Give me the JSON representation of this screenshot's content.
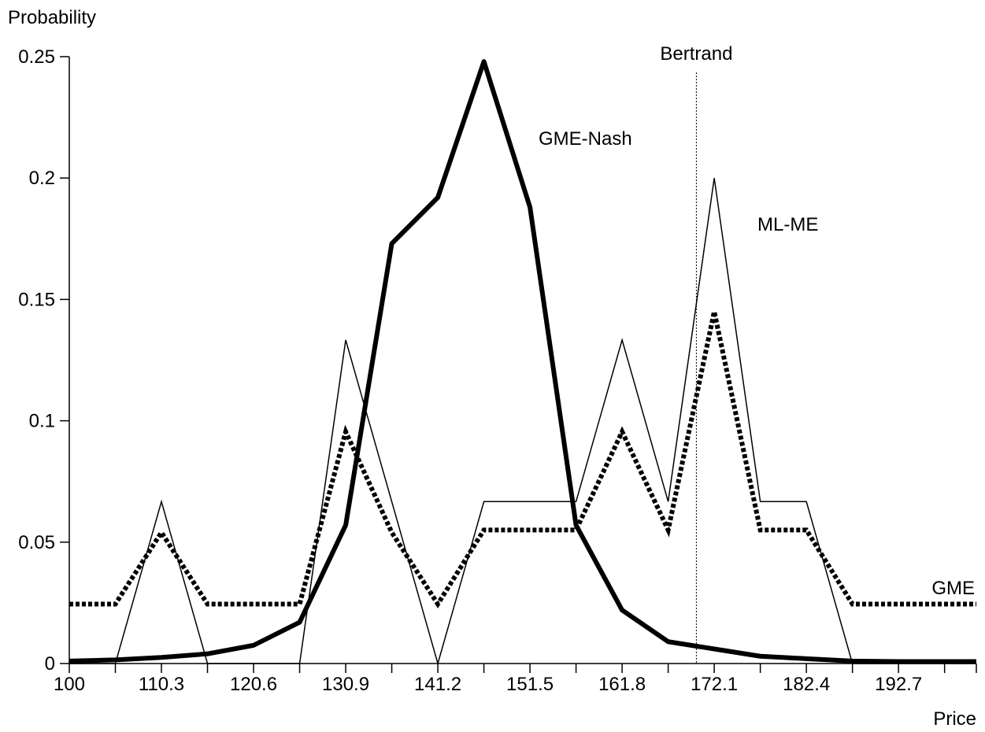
{
  "chart_data": {
    "type": "line",
    "xlabel": "Price",
    "ylabel": "Probability",
    "xlim": [
      100,
      201.4
    ],
    "ylim": [
      0,
      0.25
    ],
    "x": [
      100,
      105.15,
      110.3,
      115.45,
      120.6,
      125.75,
      130.9,
      136.05,
      141.2,
      146.35,
      151.5,
      156.65,
      161.8,
      166.95,
      172.1,
      177.25,
      182.4,
      187.55,
      192.7,
      197.85,
      201.4
    ],
    "x_tick_labels": [
      "100",
      "110.3",
      "120.6",
      "130.9",
      "141.2",
      "151.5",
      "161.8",
      "172.1",
      "182.4",
      "192.7"
    ],
    "x_tick_values": [
      100,
      110.3,
      120.6,
      130.9,
      141.2,
      151.5,
      161.8,
      172.1,
      182.4,
      192.7
    ],
    "y_ticks": [
      0,
      0.05,
      0.1,
      0.15,
      0.2,
      0.25
    ],
    "y_tick_labels": [
      "0",
      "0.05",
      "0.1",
      "0.15",
      "0.2",
      "0.25"
    ],
    "series": [
      {
        "name": "GME-Nash",
        "style": "thick",
        "values": [
          0.001,
          0.0015,
          0.0025,
          0.004,
          0.0075,
          0.017,
          0.057,
          0.173,
          0.192,
          0.248,
          0.188,
          0.057,
          0.022,
          0.009,
          0.006,
          0.003,
          0.002,
          0.001,
          0.0008,
          0.0008,
          0.0008
        ]
      },
      {
        "name": "ML-ME",
        "style": "thin",
        "values": [
          0,
          0,
          0.0667,
          0,
          0,
          0,
          0.1333,
          0.0667,
          0,
          0.0667,
          0.0667,
          0.0667,
          0.1333,
          0.0667,
          0.2,
          0.0667,
          0.0667,
          0,
          0,
          0,
          0
        ]
      },
      {
        "name": "GME",
        "style": "dotted",
        "values": [
          0.0245,
          0.0245,
          0.054,
          0.0245,
          0.0245,
          0.0245,
          0.0955,
          0.054,
          0.0245,
          0.055,
          0.055,
          0.055,
          0.0955,
          0.055,
          0.145,
          0.055,
          0.055,
          0.0245,
          0.0245,
          0.0245,
          0.0245
        ]
      }
    ],
    "reference_line": {
      "label": "Bertrand",
      "x": 170.1
    },
    "grid": false
  }
}
